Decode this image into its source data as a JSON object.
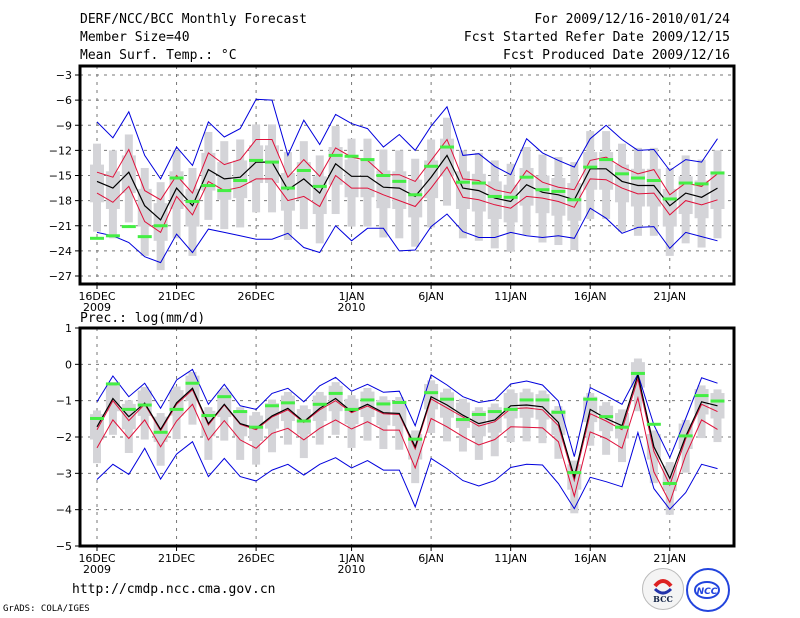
{
  "header": {
    "title": "DERF/NCC/BCC Monthly Forecast",
    "member_size": "Member Size=40",
    "variable": "Mean Surf. Temp.: °C",
    "period": "For 2009/12/16-2010/01/24",
    "started": "Fcst Started Refer Date 2009/12/15",
    "produced": "Fcst Produced Date 2009/12/16"
  },
  "footer": {
    "url": "http://cmdp.ncc.cma.gov.cn",
    "grads": "GrADS: COLA/IGES",
    "logo_left": "BCC",
    "logo_right": "NCC"
  },
  "colors": {
    "max_min": "#0000dd",
    "spread": "#e0103a",
    "mean": "#000000",
    "obs": "#44ee44",
    "box": "#d4d4d8"
  },
  "chart_data": [
    {
      "type": "line",
      "title": "Mean Surf. Temp.: °C",
      "x_labels": [
        {
          "index": 0,
          "label": "16DEC",
          "sub": "2009"
        },
        {
          "index": 5,
          "label": "21DEC",
          "sub": ""
        },
        {
          "index": 10,
          "label": "26DEC",
          "sub": ""
        },
        {
          "index": 16,
          "label": "1JAN",
          "sub": "2010"
        },
        {
          "index": 21,
          "label": "6JAN",
          "sub": ""
        },
        {
          "index": 26,
          "label": "11JAN",
          "sub": ""
        },
        {
          "index": 31,
          "label": "16JAN",
          "sub": ""
        },
        {
          "index": 36,
          "label": "21JAN",
          "sub": ""
        }
      ],
      "n_days": 40,
      "ylim": [
        -28,
        -2
      ],
      "yticks": [
        -3,
        -6,
        -9,
        -12,
        -15,
        -18,
        -21,
        -24,
        -27
      ],
      "grid": true,
      "series": [
        {
          "name": "max",
          "color_key": "max_min",
          "values": [
            -8.6,
            -10.5,
            -7.4,
            -12.6,
            -15.4,
            -11.6,
            -13.8,
            -8.6,
            -10.4,
            -9.4,
            -5.9,
            -6.0,
            -12.6,
            -8.4,
            -11.3,
            -7.7,
            -8.8,
            -9.4,
            -11.6,
            -10.1,
            -12.0,
            -9.1,
            -6.8,
            -12.6,
            -12.4,
            -13.9,
            -14.9,
            -10.6,
            -12.3,
            -13.2,
            -14.0,
            -10.6,
            -9.0,
            -10.7,
            -12.0,
            -11.9,
            -14.4,
            -13.1,
            -13.4,
            -10.6
          ]
        },
        {
          "name": "upper",
          "color_key": "spread",
          "values": [
            -14.6,
            -15.2,
            -11.9,
            -16.8,
            -17.9,
            -15.0,
            -17.1,
            -12.3,
            -13.7,
            -13.1,
            -10.7,
            -10.7,
            -15.2,
            -13.1,
            -15.1,
            -11.7,
            -12.8,
            -13.2,
            -14.9,
            -14.9,
            -15.7,
            -13.2,
            -10.7,
            -15.4,
            -15.6,
            -16.7,
            -17.1,
            -14.4,
            -15.8,
            -16.4,
            -16.7,
            -13.2,
            -12.8,
            -14.0,
            -14.8,
            -14.3,
            -17.3,
            -15.9,
            -16.3,
            -14.8
          ]
        },
        {
          "name": "mean",
          "color_key": "mean",
          "values": [
            -15.7,
            -16.5,
            -14.6,
            -18.6,
            -20.3,
            -16.5,
            -18.6,
            -14.3,
            -15.4,
            -15.2,
            -13.4,
            -13.4,
            -16.7,
            -15.4,
            -17.1,
            -13.6,
            -15.1,
            -15.1,
            -16.4,
            -16.5,
            -17.5,
            -15.2,
            -12.6,
            -16.5,
            -16.8,
            -17.7,
            -18.1,
            -16.1,
            -17.0,
            -17.3,
            -17.9,
            -14.2,
            -14.2,
            -15.7,
            -16.2,
            -16.2,
            -18.6,
            -17.1,
            -17.6,
            -16.5
          ]
        },
        {
          "name": "lower",
          "color_key": "spread",
          "values": [
            -17.1,
            -18.2,
            -16.3,
            -20.5,
            -21.8,
            -17.5,
            -19.7,
            -15.7,
            -16.8,
            -16.4,
            -15.4,
            -15.4,
            -18.0,
            -17.5,
            -18.7,
            -15.0,
            -16.5,
            -16.5,
            -17.3,
            -18.0,
            -18.7,
            -16.5,
            -14.0,
            -17.6,
            -17.9,
            -18.5,
            -18.9,
            -17.5,
            -17.7,
            -18.1,
            -18.8,
            -15.4,
            -15.5,
            -16.5,
            -17.2,
            -17.1,
            -19.7,
            -18.0,
            -18.5,
            -17.9
          ]
        },
        {
          "name": "min",
          "color_key": "max_min",
          "values": [
            -21.8,
            -22.2,
            -23.0,
            -24.7,
            -25.4,
            -22.0,
            -24.2,
            -21.4,
            -21.8,
            -22.2,
            -22.6,
            -22.6,
            -21.9,
            -23.6,
            -24.2,
            -21.0,
            -22.8,
            -21.3,
            -21.3,
            -24.0,
            -23.9,
            -21.1,
            -19.6,
            -21.7,
            -22.4,
            -22.4,
            -21.8,
            -22.2,
            -22.4,
            -22.2,
            -22.5,
            -18.9,
            -20.1,
            -21.9,
            -21.2,
            -21.1,
            -23.7,
            -21.8,
            -22.3,
            -22.8
          ]
        },
        {
          "name": "observed",
          "color_key": "obs",
          "values": [
            -22.5,
            -22.2,
            -21.1,
            -22.3,
            -21.0,
            -15.3,
            -18.1,
            -16.2,
            -16.8,
            -15.6,
            -13.2,
            -13.4,
            -16.5,
            -14.4,
            -16.3,
            -12.6,
            -12.7,
            -13.1,
            -15.0,
            -15.7,
            -17.3,
            -13.9,
            -11.6,
            -15.8,
            -15.9,
            -17.5,
            -17.6,
            -15.2,
            -16.7,
            -16.9,
            -17.9,
            -14.0,
            -13.1,
            -14.8,
            -15.3,
            -15.6,
            -17.8,
            -15.9,
            -16.0,
            -14.7
          ]
        }
      ],
      "box_offsets": {
        "whisker_low": -6.0,
        "whisker_high": 4.5,
        "box_low": -2.5,
        "box_high": 2.0
      }
    },
    {
      "type": "line",
      "title": "Prec.: log(mm/d)",
      "x_labels": [
        {
          "index": 0,
          "label": "16DEC",
          "sub": "2009"
        },
        {
          "index": 5,
          "label": "21DEC",
          "sub": ""
        },
        {
          "index": 10,
          "label": "26DEC",
          "sub": ""
        },
        {
          "index": 16,
          "label": "1JAN",
          "sub": "2010"
        },
        {
          "index": 21,
          "label": "6JAN",
          "sub": ""
        },
        {
          "index": 26,
          "label": "11JAN",
          "sub": ""
        },
        {
          "index": 31,
          "label": "16JAN",
          "sub": ""
        },
        {
          "index": 36,
          "label": "21JAN",
          "sub": ""
        }
      ],
      "n_days": 40,
      "ylim": [
        -5,
        1
      ],
      "yticks": [
        1,
        0,
        -1,
        -2,
        -3,
        -4,
        -5
      ],
      "grid": true,
      "series": [
        {
          "name": "max",
          "color_key": "max_min",
          "values": [
            -1.03,
            -0.32,
            -0.89,
            -0.52,
            -1.21,
            -0.43,
            -0.14,
            -1.1,
            -0.55,
            -1.14,
            -1.24,
            -0.8,
            -0.66,
            -1.03,
            -0.59,
            -0.36,
            -0.74,
            -0.55,
            -0.77,
            -0.74,
            -1.69,
            -0.29,
            -0.57,
            -0.89,
            -1.05,
            -0.98,
            -0.54,
            -0.46,
            -0.57,
            -1.01,
            -2.54,
            -0.64,
            -0.86,
            -1.1,
            -0.27,
            -1.67,
            -2.57,
            -1.49,
            -0.37,
            -0.52
          ]
        },
        {
          "name": "upper",
          "color_key": "spread",
          "values": [
            -1.8,
            -1.0,
            -1.55,
            -1.1,
            -1.83,
            -1.1,
            -0.7,
            -1.67,
            -1.12,
            -1.65,
            -1.8,
            -1.45,
            -1.25,
            -1.6,
            -1.25,
            -1.0,
            -1.33,
            -1.15,
            -1.36,
            -1.38,
            -2.33,
            -0.95,
            -1.2,
            -1.45,
            -1.7,
            -1.58,
            -1.22,
            -1.2,
            -1.25,
            -1.69,
            -3.2,
            -1.36,
            -1.56,
            -1.8,
            -0.4,
            -2.4,
            -3.32,
            -2.05,
            -1.1,
            -1.3
          ]
        },
        {
          "name": "mean",
          "color_key": "mean",
          "values": [
            -1.72,
            -0.94,
            -1.44,
            -1.07,
            -1.79,
            -1.06,
            -0.66,
            -1.63,
            -1.1,
            -1.63,
            -1.76,
            -1.42,
            -1.21,
            -1.58,
            -1.21,
            -0.94,
            -1.3,
            -1.1,
            -1.33,
            -1.35,
            -2.27,
            -0.89,
            -1.12,
            -1.4,
            -1.63,
            -1.53,
            -1.14,
            -1.12,
            -1.17,
            -1.6,
            -3.1,
            -1.24,
            -1.49,
            -1.69,
            -0.29,
            -2.27,
            -3.14,
            -1.98,
            -1.03,
            -1.14
          ]
        },
        {
          "name": "lower",
          "color_key": "spread",
          "values": [
            -2.3,
            -1.53,
            -2.04,
            -1.53,
            -2.27,
            -1.56,
            -1.1,
            -2.08,
            -1.55,
            -2.08,
            -2.31,
            -1.9,
            -1.76,
            -2.08,
            -1.76,
            -1.53,
            -1.78,
            -1.58,
            -1.81,
            -1.81,
            -2.85,
            -1.49,
            -1.72,
            -1.99,
            -2.22,
            -2.07,
            -1.72,
            -1.73,
            -1.75,
            -2.13,
            -3.63,
            -1.86,
            -2.04,
            -2.31,
            -0.92,
            -2.96,
            -3.8,
            -2.5,
            -1.53,
            -1.79
          ]
        },
        {
          "name": "min",
          "color_key": "max_min",
          "values": [
            -3.17,
            -2.75,
            -3.03,
            -2.31,
            -3.16,
            -2.47,
            -2.13,
            -3.09,
            -2.59,
            -3.09,
            -3.21,
            -2.91,
            -2.75,
            -3.05,
            -2.75,
            -2.57,
            -2.85,
            -2.65,
            -2.91,
            -2.91,
            -3.92,
            -2.59,
            -2.87,
            -3.2,
            -3.35,
            -3.2,
            -2.84,
            -2.75,
            -2.77,
            -3.28,
            -3.97,
            -3.11,
            -3.23,
            -3.37,
            -1.88,
            -3.42,
            -3.99,
            -3.53,
            -2.75,
            -2.87
          ]
        },
        {
          "name": "observed",
          "color_key": "obs",
          "values": [
            -1.49,
            -0.54,
            -1.24,
            -1.12,
            -1.87,
            -1.24,
            -0.52,
            -1.41,
            -0.89,
            -1.3,
            -1.73,
            -1.14,
            -1.06,
            -1.56,
            -1.1,
            -0.8,
            -1.24,
            -0.98,
            -1.09,
            -1.05,
            -2.06,
            -0.78,
            -0.96,
            -1.52,
            -1.38,
            -1.3,
            -1.24,
            -0.98,
            -0.98,
            -1.32,
            -2.98,
            -0.96,
            -1.44,
            -1.73,
            -0.25,
            -1.65,
            -3.28,
            -1.97,
            -0.86,
            -1.01
          ]
        }
      ],
      "box_offsets": {
        "whisker_low": -1.0,
        "whisker_high": 0.45,
        "box_low": -0.35,
        "box_high": 0.35
      }
    }
  ]
}
